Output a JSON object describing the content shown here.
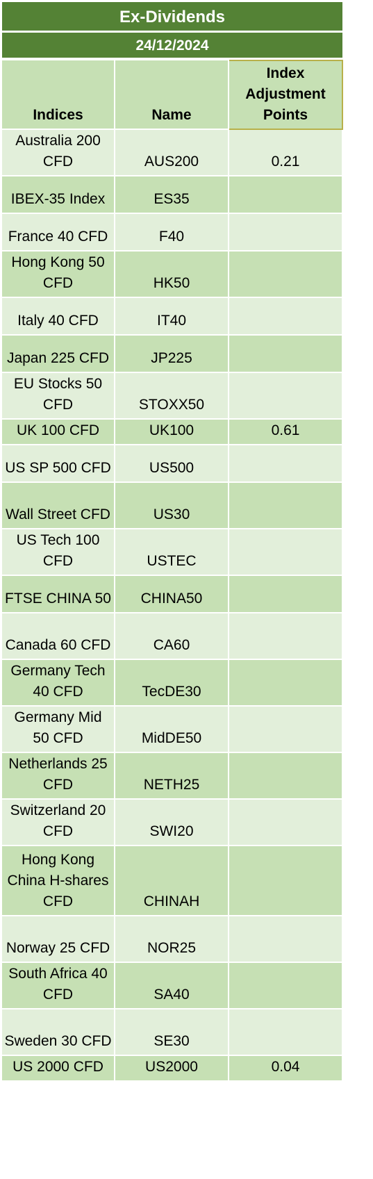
{
  "header": {
    "title": "Ex-Dividends",
    "date": "24/12/2024"
  },
  "columns": {
    "indices": "Indices",
    "name": "Name",
    "index_adjustment": "Index Adjustment Points"
  },
  "rows": [
    {
      "index": "Australia 200 CFD",
      "name": "AUS200",
      "points": "0.21"
    },
    {
      "index": "IBEX-35 Index",
      "name": "ES35",
      "points": ""
    },
    {
      "index": "France 40 CFD",
      "name": "F40",
      "points": ""
    },
    {
      "index": "Hong Kong 50 CFD",
      "name": "HK50",
      "points": ""
    },
    {
      "index": "Italy 40 CFD",
      "name": "IT40",
      "points": ""
    },
    {
      "index": "Japan 225 CFD",
      "name": "JP225",
      "points": ""
    },
    {
      "index": "EU Stocks 50 CFD",
      "name": "STOXX50",
      "points": ""
    },
    {
      "index": "UK 100 CFD",
      "name": "UK100",
      "points": "0.61"
    },
    {
      "index": "US SP 500 CFD",
      "name": "US500",
      "points": ""
    },
    {
      "index": "Wall Street CFD",
      "name": "US30",
      "points": ""
    },
    {
      "index": "US Tech 100 CFD",
      "name": "USTEC",
      "points": ""
    },
    {
      "index": "FTSE CHINA 50",
      "name": "CHINA50",
      "points": ""
    },
    {
      "index": "Canada 60 CFD",
      "name": "CA60",
      "points": ""
    },
    {
      "index": "Germany Tech 40 CFD",
      "name": "TecDE30",
      "points": ""
    },
    {
      "index": "Germany Mid 50 CFD",
      "name": "MidDE50",
      "points": ""
    },
    {
      "index": "Netherlands 25 CFD",
      "name": "NETH25",
      "points": ""
    },
    {
      "index": "Switzerland 20 CFD",
      "name": "SWI20",
      "points": ""
    },
    {
      "index": "Hong Kong China H-shares CFD",
      "name": "CHINAH",
      "points": ""
    },
    {
      "index": "Norway 25 CFD",
      "name": "NOR25",
      "points": ""
    },
    {
      "index": "South Africa 40 CFD",
      "name": "SA40",
      "points": ""
    },
    {
      "index": "Sweden 30 CFD",
      "name": "SE30",
      "points": ""
    },
    {
      "index": "US 2000 CFD",
      "name": "US2000",
      "points": "0.04"
    }
  ]
}
